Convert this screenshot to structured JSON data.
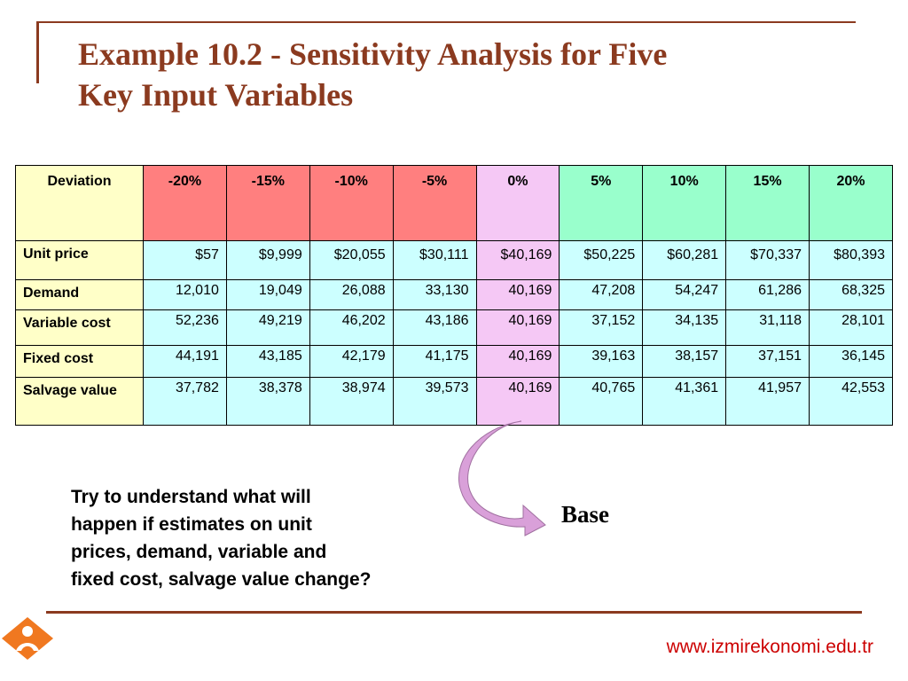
{
  "title": {
    "line1": "Example 10.2 - Sensitivity Analysis for Five",
    "line2": "Key Input Variables"
  },
  "colors": {
    "title": "#8B3A1F",
    "rule": "#8B3A1F",
    "label_cell": "#FFFFC8",
    "negative_header": "#FF7F7F",
    "base_header": "#F5C8F5",
    "positive_header": "#99FFCC",
    "value_cell": "#CCFFFF",
    "arrow": "#D9A0D9",
    "url": "#CC0000"
  },
  "table": {
    "corner": "Deviation",
    "headers": [
      "-20%",
      "-15%",
      "-10%",
      "-5%",
      "0%",
      "5%",
      "10%",
      "15%",
      "20%"
    ],
    "rows": [
      {
        "label": "Unit price",
        "values": [
          "$57",
          "$9,999",
          "$20,055",
          "$30,111",
          "$40,169",
          "$50,225",
          "$60,281",
          "$70,337",
          "$80,393"
        ]
      },
      {
        "label": "Demand",
        "values": [
          "12,010",
          "19,049",
          "26,088",
          "33,130",
          "40,169",
          "47,208",
          "54,247",
          "61,286",
          "68,325"
        ]
      },
      {
        "label": "Variable cost",
        "values": [
          "52,236",
          "49,219",
          "46,202",
          "43,186",
          "40,169",
          "37,152",
          "34,135",
          "31,118",
          "28,101"
        ]
      },
      {
        "label": "Fixed cost",
        "values": [
          "44,191",
          "43,185",
          "42,179",
          "41,175",
          "40,169",
          "39,163",
          "38,157",
          "37,151",
          "36,145"
        ]
      },
      {
        "label": "Salvage value",
        "values": [
          "37,782",
          "38,378",
          "38,974",
          "39,573",
          "40,169",
          "40,765",
          "41,361",
          "41,957",
          "42,553"
        ]
      }
    ]
  },
  "note": {
    "line1": "Try to understand what will",
    "line2": "happen if estimates on unit",
    "line3": "prices, demand, variable and",
    "line4": "fixed cost, salvage value change?"
  },
  "base_label": "Base",
  "arrow_icon": "curved-arrow-icon",
  "logo_icon": "izmir-ekonomi-logo-icon",
  "footer_url": "www.izmirekonomi.edu.tr"
}
